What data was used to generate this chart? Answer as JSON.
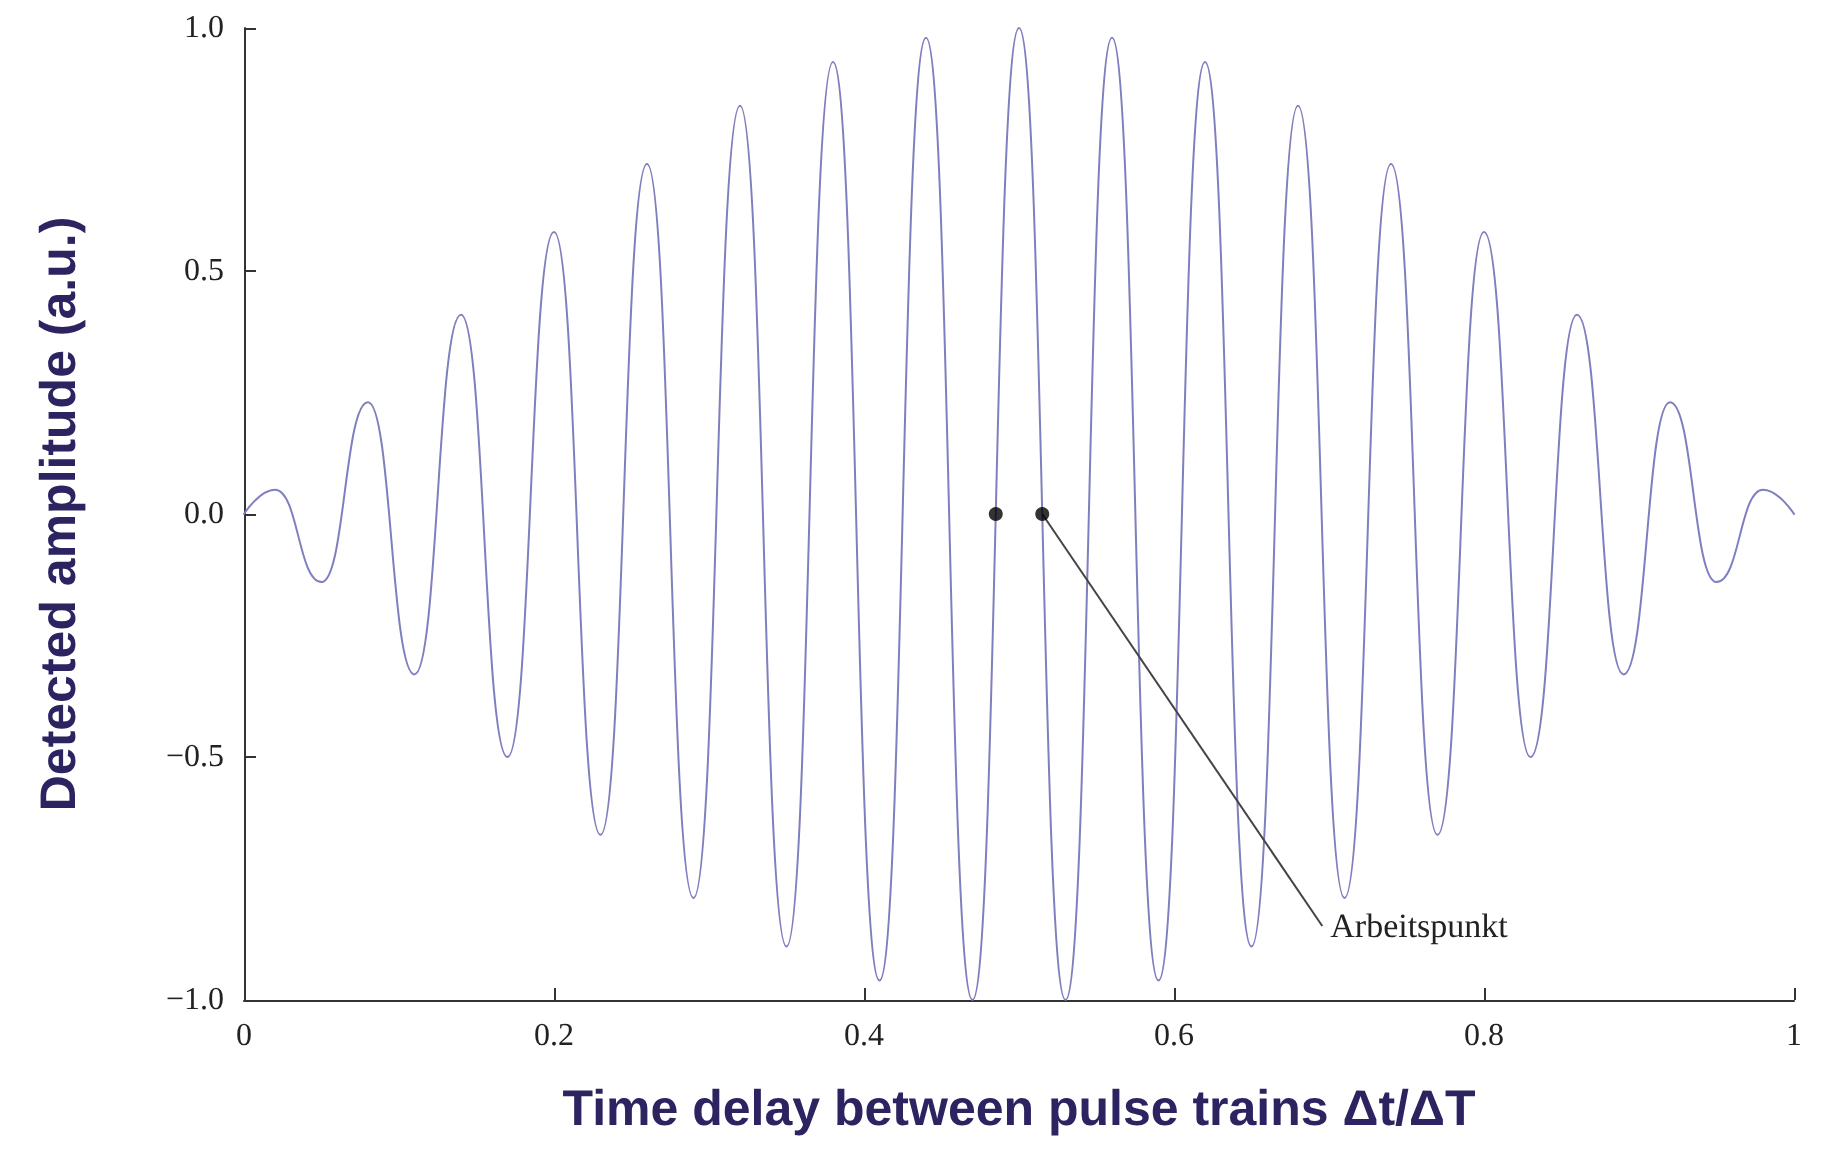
{
  "chart_data": {
    "type": "line",
    "xlabel": "Time delay between pulse trains Δt/ΔT",
    "ylabel": "Detected amplitude (a.u.)",
    "xlim": [
      0,
      1
    ],
    "ylim": [
      -1.0,
      1.0
    ],
    "xticks": [
      0,
      0.2,
      0.4,
      0.6,
      0.8,
      1
    ],
    "yticks": [
      {
        "value": -1.0,
        "label": "−1.0"
      },
      {
        "value": -0.5,
        "label": "−0.5"
      },
      {
        "value": 0,
        "label": "0.0"
      },
      {
        "value": 0.5,
        "label": "0.5"
      },
      {
        "value": 1.0,
        "label": "1.0"
      }
    ],
    "marker": "none",
    "line_style": "solid",
    "annotations": [
      {
        "text": "Arbeitspunkt",
        "x": 0.515,
        "y": 0
      }
    ],
    "series": [
      {
        "color": "#7f7fbf",
        "x": [
          0,
          0.02,
          0.05,
          0.08,
          0.11,
          0.14,
          0.17,
          0.2,
          0.23,
          0.26,
          0.29,
          0.32,
          0.35,
          0.38,
          0.41,
          0.44,
          0.47,
          0.5,
          0.53,
          0.56,
          0.59,
          0.62,
          0.65,
          0.68,
          0.71,
          0.74,
          0.77,
          0.8,
          0.83,
          0.86,
          0.89,
          0.92,
          0.95,
          0.98,
          1
        ],
        "values": [
          0,
          0.05,
          -0.14,
          0.23,
          -0.33,
          0.41,
          -0.5,
          0.58,
          -0.66,
          0.72,
          -0.79,
          0.84,
          -0.89,
          0.93,
          -0.96,
          0.98,
          -1,
          1,
          -1,
          0.98,
          -0.96,
          0.93,
          -0.89,
          0.84,
          -0.79,
          0.72,
          -0.66,
          0.58,
          -0.5,
          0.41,
          -0.33,
          0.23,
          -0.14,
          0.05,
          0
        ]
      },
      {
        "type": "scatter",
        "color": "#000000",
        "marker": "circle",
        "x": [
          0.485,
          0.515
        ],
        "values": [
          0,
          0
        ]
      }
    ]
  }
}
